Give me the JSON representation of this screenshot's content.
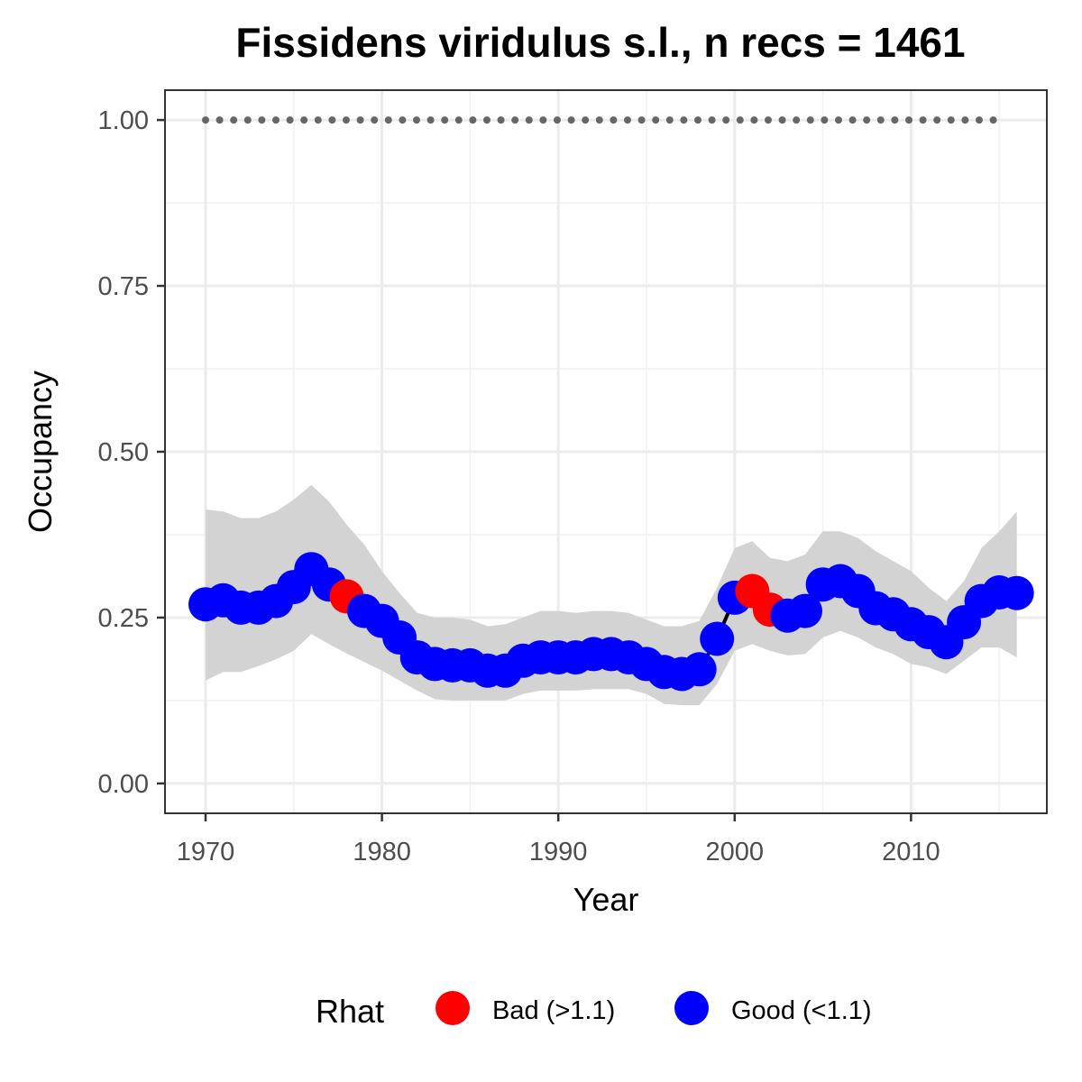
{
  "chart_data": {
    "type": "line",
    "title": "Fissidens viridulus s.l., n recs = 1461",
    "xlabel": "Year",
    "ylabel": "Occupancy",
    "xlim": [
      1967.7,
      2017.7
    ],
    "ylim": [
      -0.045,
      1.045
    ],
    "x_ticks": [
      1970,
      1980,
      1990,
      2000,
      2010
    ],
    "x_tick_labels": [
      "1970",
      "1980",
      "1990",
      "2000",
      "2010"
    ],
    "y_ticks": [
      0,
      0.25,
      0.5,
      0.75,
      1.0
    ],
    "y_tick_labels": [
      "0.00",
      "0.25",
      "0.50",
      "0.75",
      "1.00"
    ],
    "grid": true,
    "legend": {
      "title": "Rhat",
      "position": "bottom",
      "entries": [
        {
          "label": "Bad (>1.1)",
          "color": "#ff0000"
        },
        {
          "label": "Good (<1.1)",
          "color": "#0000ff"
        }
      ]
    },
    "colors": {
      "bad": "#ff0000",
      "good": "#0000ff",
      "ribbon": "#d3d3d3",
      "line": "#000000",
      "reference": "#666666"
    },
    "years": [
      1970,
      1971,
      1972,
      1973,
      1974,
      1975,
      1976,
      1977,
      1978,
      1979,
      1980,
      1981,
      1982,
      1983,
      1984,
      1985,
      1986,
      1987,
      1988,
      1989,
      1990,
      1991,
      1992,
      1993,
      1994,
      1995,
      1996,
      1997,
      1998,
      1999,
      2000,
      2001,
      2002,
      2003,
      2004,
      2005,
      2006,
      2007,
      2008,
      2009,
      2010,
      2011,
      2012,
      2013,
      2014,
      2015,
      2016
    ],
    "occupancy": [
      0.27,
      0.276,
      0.265,
      0.265,
      0.275,
      0.296,
      0.323,
      0.3,
      0.282,
      0.26,
      0.245,
      0.22,
      0.19,
      0.18,
      0.178,
      0.178,
      0.17,
      0.17,
      0.185,
      0.19,
      0.19,
      0.19,
      0.195,
      0.195,
      0.19,
      0.18,
      0.168,
      0.165,
      0.172,
      0.218,
      0.28,
      0.29,
      0.262,
      0.253,
      0.26,
      0.3,
      0.305,
      0.29,
      0.264,
      0.255,
      0.24,
      0.228,
      0.213,
      0.243,
      0.275,
      0.288,
      0.287
    ],
    "lower": [
      0.155,
      0.168,
      0.168,
      0.177,
      0.187,
      0.2,
      0.225,
      0.21,
      0.196,
      0.183,
      0.17,
      0.155,
      0.14,
      0.127,
      0.125,
      0.125,
      0.125,
      0.125,
      0.135,
      0.14,
      0.14,
      0.14,
      0.142,
      0.142,
      0.142,
      0.135,
      0.12,
      0.118,
      0.118,
      0.15,
      0.2,
      0.21,
      0.2,
      0.193,
      0.195,
      0.22,
      0.23,
      0.22,
      0.205,
      0.195,
      0.18,
      0.175,
      0.165,
      0.185,
      0.205,
      0.205,
      0.19
    ],
    "upper": [
      0.413,
      0.41,
      0.4,
      0.4,
      0.41,
      0.428,
      0.45,
      0.425,
      0.39,
      0.36,
      0.32,
      0.287,
      0.257,
      0.25,
      0.25,
      0.247,
      0.237,
      0.24,
      0.25,
      0.26,
      0.26,
      0.257,
      0.26,
      0.26,
      0.257,
      0.247,
      0.237,
      0.237,
      0.245,
      0.295,
      0.355,
      0.365,
      0.34,
      0.335,
      0.345,
      0.38,
      0.38,
      0.37,
      0.35,
      0.335,
      0.32,
      0.295,
      0.275,
      0.305,
      0.355,
      0.38,
      0.41
    ],
    "rhat": [
      "good",
      "good",
      "good",
      "good",
      "good",
      "good",
      "good",
      "good",
      "bad",
      "good",
      "good",
      "good",
      "good",
      "good",
      "good",
      "good",
      "good",
      "good",
      "good",
      "good",
      "good",
      "good",
      "good",
      "good",
      "good",
      "good",
      "good",
      "good",
      "good",
      "good",
      "good",
      "bad",
      "bad",
      "good",
      "good",
      "good",
      "good",
      "good",
      "good",
      "good",
      "good",
      "good",
      "good",
      "good",
      "good",
      "good",
      "good"
    ],
    "reference_line": {
      "value": 1.0,
      "x_from": 1970,
      "x_to": 2015
    }
  }
}
